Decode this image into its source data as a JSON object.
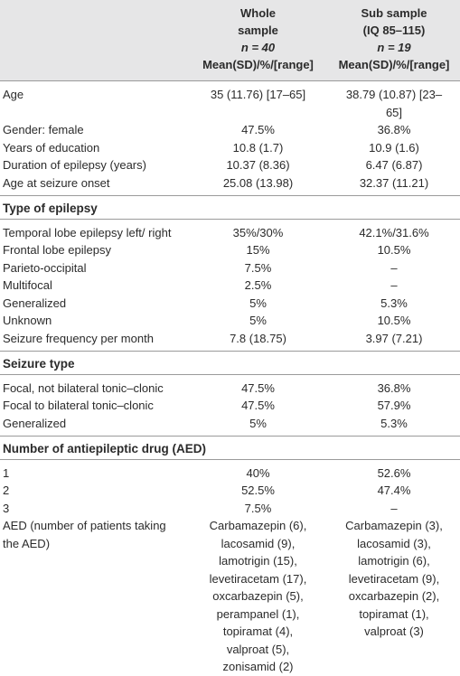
{
  "table": {
    "columns": [
      [
        "Whole",
        "sample",
        "n = 40",
        "Mean(SD)/%/[range]"
      ],
      [
        "Sub sample",
        "(IQ 85–115)",
        "n = 19",
        "Mean(SD)/%/[range]"
      ]
    ],
    "rows": [
      [
        "Age",
        "35 (11.76) [17–65]",
        "38.79 (10.87) [23–65]"
      ],
      [
        "Gender: female",
        "47.5%",
        "36.8%"
      ],
      [
        "Years of education",
        "10.8 (1.7)",
        "10.9 (1.6)"
      ],
      [
        "Duration of epilepsy (years)",
        "10.37 (8.36)",
        "6.47 (6.87)"
      ],
      [
        "Age at seizure onset",
        "25.08 (13.98)",
        "32.37 (11.21)"
      ]
    ],
    "sections": [
      {
        "title": "Type of epilepsy",
        "rows": [
          [
            "Temporal lobe epilepsy left/ right",
            "35%/30%",
            "42.1%/31.6%"
          ],
          [
            "Frontal lobe epilepsy",
            "15%",
            "10.5%"
          ],
          [
            "Parieto-occipital",
            "7.5%",
            "–"
          ],
          [
            "Multifocal",
            "2.5%",
            "–"
          ],
          [
            "Generalized",
            "5%",
            "5.3%"
          ],
          [
            "Unknown",
            "5%",
            "10.5%"
          ],
          [
            "Seizure frequency per month",
            "7.8 (18.75)",
            "3.97 (7.21)"
          ]
        ]
      },
      {
        "title": "Seizure type",
        "rows": [
          [
            "Focal, not bilateral tonic–clonic",
            "47.5%",
            "36.8%"
          ],
          [
            "Focal to bilateral tonic–clonic",
            "47.5%",
            "57.9%"
          ],
          [
            "Generalized",
            "5%",
            "5.3%"
          ]
        ]
      },
      {
        "title": "Number of antiepileptic drug (AED)",
        "rows": [
          [
            "1",
            "40%",
            "52.6%"
          ],
          [
            "2",
            "52.5%",
            "47.4%"
          ],
          [
            "3",
            "7.5%",
            "–"
          ],
          [
            "AED (number of patients taking the AED)",
            "Carbamazepin (6), lacosamid (9), lamotrigin (15), levetiracetam (17), oxcarbazepin (5), perampanel (1), topiramat (4), valproat (5), zonisamid (2)",
            "Carbamazepin (3), lacosamid (3), lamotrigin (6), levetiracetam (9), oxcarbazepin (2), topiramat (1), valproat (3)"
          ]
        ]
      }
    ]
  }
}
